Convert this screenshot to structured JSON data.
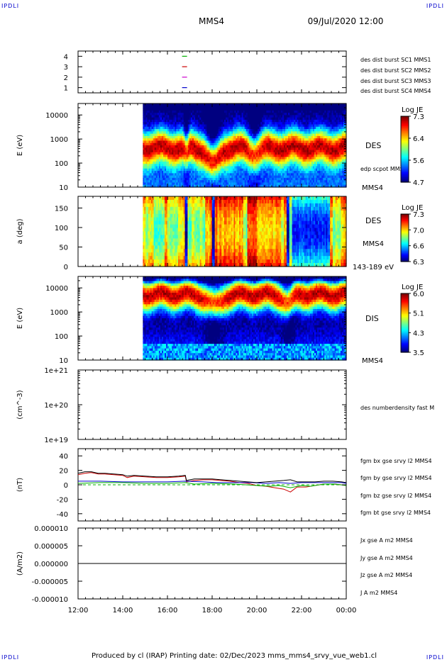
{
  "header": {
    "spacecraft": "MMS4",
    "date": "09/Jul/2020 12:00"
  },
  "corners": {
    "top_left": "IPDLI",
    "top_right": "IPDLI",
    "bottom_left": "IPDLI",
    "bottom_right": "IPDLI"
  },
  "footer": "Produced by cl (IRAP)   Printing date: 02/Dec/2023   mms_mms4_srvy_vue_web1.cl",
  "colors": {
    "red": "#cc0000",
    "green": "#00b000",
    "blue": "#0000cc",
    "magenta": "#cc00cc",
    "black": "#000000"
  },
  "chart_data": [
    {
      "type": "line",
      "name": "burst-availability",
      "ylim": [
        0.5,
        4.5
      ],
      "yticks": [
        "4",
        "3",
        "2",
        "1"
      ],
      "markers": [
        {
          "level": 4,
          "t": 16.75,
          "color": "#00b000"
        },
        {
          "level": 3,
          "t": 16.75,
          "color": "#cc0000"
        },
        {
          "level": 2,
          "t": 16.75,
          "color": "#cc00cc"
        },
        {
          "level": 1,
          "t": 16.75,
          "color": "#0000cc"
        }
      ],
      "legend": [
        {
          "text": "des dist burst SC1 MMS1",
          "color": "#0000cc"
        },
        {
          "text": "des dist burst SC2 MMS2",
          "color": "#cc00cc"
        },
        {
          "text": "des dist burst SC3 MMS3",
          "color": "#cc0000"
        },
        {
          "text": "des dist burst SC4 MMS4",
          "color": "#00b000"
        }
      ]
    },
    {
      "type": "heatmap",
      "name": "des-energy",
      "ylabel": "E (eV)",
      "yscale": "log",
      "ylim": [
        10,
        30000
      ],
      "yticks": [
        "10000",
        "1000",
        "100",
        "10"
      ],
      "data_start": 14.9,
      "label": "DES",
      "side_note": "edp scpot MMS4",
      "bottom_note": "MMS4",
      "colorbar": {
        "title": "Log JE",
        "ticks": [
          "7.3",
          "6.4",
          "5.6",
          "4.7"
        ]
      },
      "profile_peak_fraction": 0.47,
      "profile_width_fraction": 0.2,
      "dips": [
        {
          "t": 18.05,
          "depth": 0.18,
          "width": 0.35
        },
        {
          "t": 16.85,
          "depth": 0.08,
          "width": 0.12
        },
        {
          "t": 19.9,
          "depth": 0.05,
          "width": 0.3
        }
      ]
    },
    {
      "type": "heatmap",
      "name": "des-pitch-angle",
      "ylabel": "a (deg)",
      "ylim": [
        0,
        180
      ],
      "yticks": [
        "150",
        "100",
        "50",
        "0"
      ],
      "data_start": 14.9,
      "label": "DES",
      "side_note": "MMS4",
      "bottom_note": "143-189 eV",
      "colorbar": {
        "title": "Log JE",
        "ticks": [
          "7.3",
          "7.0",
          "6.6",
          "6.3"
        ]
      }
    },
    {
      "type": "heatmap",
      "name": "dis-energy",
      "ylabel": "E (eV)",
      "yscale": "log",
      "ylim": [
        10,
        30000
      ],
      "yticks": [
        "10000",
        "1000",
        "100",
        "10"
      ],
      "data_start": 14.9,
      "label": "DIS",
      "bottom_note": "MMS4",
      "colorbar": {
        "title": "Log JE",
        "ticks": [
          "6.0",
          "5.1",
          "4.3",
          "3.5"
        ]
      },
      "profile_peak_fraction": 0.78,
      "profile_width_fraction": 0.18,
      "dips": [
        {
          "t": 18.1,
          "depth": 0.12,
          "width": 0.45
        },
        {
          "t": 21.4,
          "depth": 0.1,
          "width": 0.3
        }
      ]
    },
    {
      "type": "line",
      "name": "density",
      "ylabel": "(cm^-3)",
      "yscale": "log",
      "ylim": [
        1e+19,
        1e+21
      ],
      "yticks": [
        "1e+21",
        "1e+20",
        "1e+19"
      ],
      "legend": [
        {
          "text": "des numberdensity fast M",
          "color": "#000000"
        }
      ],
      "series": []
    },
    {
      "type": "line",
      "name": "magnetic-field",
      "ylabel": "(nT)",
      "ylim": [
        -50,
        50
      ],
      "yticks": [
        "40",
        "20",
        "0",
        "-20",
        "-40"
      ],
      "legend": [
        {
          "text": "fgm bx gse srvy l2 MMS4",
          "color": "#cc0000"
        },
        {
          "text": "fgm by gse srvy l2 MMS4",
          "color": "#00b000"
        },
        {
          "text": "fgm bz gse srvy l2 MMS4",
          "color": "#0000cc"
        },
        {
          "text": "fgm bt gse srvy l2 MMS4",
          "color": "#000000"
        }
      ],
      "series": [
        {
          "name": "bx",
          "color": "#cc0000",
          "t": [
            12.0,
            12.3,
            12.6,
            12.9,
            13.2,
            13.6,
            14.0,
            14.2,
            14.5,
            15.0,
            15.5,
            16.0,
            16.5,
            16.8,
            16.85,
            17.2,
            17.6,
            18.0,
            18.4,
            18.8,
            19.2,
            19.6,
            20.0,
            20.4,
            20.8,
            21.2,
            21.5,
            21.8,
            22.2,
            22.6,
            23.0,
            23.4,
            23.8,
            24.0
          ],
          "v": [
            14,
            16,
            17,
            15,
            15,
            14,
            13,
            10,
            12,
            11,
            10,
            10,
            11,
            12,
            4,
            6,
            7,
            7,
            6,
            5,
            3,
            2,
            -1,
            -2,
            -4,
            -6,
            -10,
            -3,
            -3,
            -1,
            1,
            1,
            0,
            -1
          ]
        },
        {
          "name": "by",
          "color": "#00b000",
          "t": [
            12.0,
            13.0,
            14.0,
            15.0,
            16.0,
            16.8,
            17.2,
            18.0,
            19.0,
            20.0,
            20.6,
            21.0,
            21.5,
            22.0,
            22.4,
            23.0,
            23.5,
            24.0
          ],
          "v": [
            2,
            3,
            3,
            2,
            2,
            3,
            1,
            2,
            1,
            -1,
            -2,
            -1,
            -4,
            -1,
            -2,
            1,
            1,
            -1
          ]
        },
        {
          "name": "bz",
          "color": "#0000cc",
          "t": [
            12.0,
            13.0,
            14.0,
            15.0,
            16.0,
            16.8,
            17.6,
            18.2,
            19.0,
            19.8,
            20.4,
            21.0,
            21.5,
            22.0,
            22.6,
            23.2,
            23.8,
            24.0
          ],
          "v": [
            5,
            5,
            4,
            4,
            4,
            5,
            4,
            3,
            3,
            3,
            2,
            3,
            2,
            3,
            3,
            3,
            3,
            2
          ]
        },
        {
          "name": "bt",
          "color": "#000000",
          "t": [
            12.0,
            12.3,
            12.6,
            12.9,
            13.2,
            13.6,
            14.0,
            14.2,
            14.5,
            15.0,
            15.5,
            16.0,
            16.5,
            16.8,
            16.85,
            17.2,
            17.6,
            18.0,
            18.4,
            18.8,
            19.2,
            19.6,
            20.0,
            20.4,
            20.8,
            21.2,
            21.5,
            21.8,
            22.2,
            22.6,
            23.0,
            23.4,
            23.8,
            24.0
          ],
          "v": [
            16,
            18,
            18,
            16,
            16,
            15,
            14,
            12,
            13,
            12,
            11,
            11,
            12,
            13,
            6,
            8,
            8,
            8,
            7,
            6,
            5,
            4,
            3,
            4,
            5,
            6,
            7,
            4,
            4,
            4,
            5,
            5,
            4,
            3
          ]
        }
      ]
    },
    {
      "type": "line",
      "name": "current-density",
      "ylabel": "(A/m2)",
      "ylim": [
        -1e-05,
        1e-05
      ],
      "yticks": [
        "0.000010",
        "0.000005",
        "0.000000",
        "-0.000005",
        "-0.000010"
      ],
      "legend": [
        {
          "text": "Jx gse A m2 MMS4",
          "color": "#cc0000"
        },
        {
          "text": "Jy gse A m2 MMS4",
          "color": "#00b000"
        },
        {
          "text": "Jz gse A m2 MMS4",
          "color": "#0000cc"
        },
        {
          "text": "J A m2 MMS4",
          "color": "#000000"
        }
      ],
      "series": [
        {
          "name": "J",
          "color": "#000000",
          "t": [
            12.0,
            24.0
          ],
          "v": [
            0,
            0
          ]
        }
      ]
    }
  ],
  "time_axis": {
    "ticks": [
      "12:00",
      "14:00",
      "16:00",
      "18:00",
      "20:00",
      "22:00",
      "00:00"
    ],
    "values": [
      12,
      14,
      16,
      18,
      20,
      22,
      24
    ],
    "range": [
      12,
      24
    ]
  }
}
